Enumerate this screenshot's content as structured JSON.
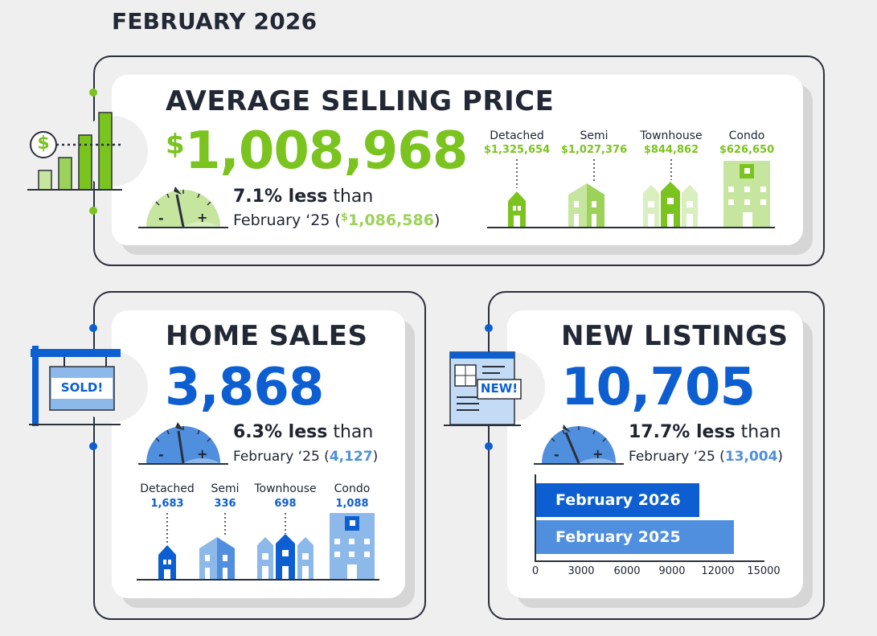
{
  "page": {
    "title": "FEBRUARY 2026"
  },
  "colors": {
    "green": "#7bc41f",
    "green_light": "#c6e69f",
    "blue": "#0d5fd1",
    "blue_light": "#8cb9ea",
    "dark": "#222836"
  },
  "avg_price": {
    "heading": "AVERAGE SELLING PRICE",
    "currency": "$",
    "value": "1,008,968",
    "change_bold": "7.1% less",
    "change_rest": " than",
    "compare_prefix": "February ‘25 (",
    "compare_currency": "$",
    "compare_value": "1,086,586",
    "compare_suffix": ")",
    "gauge": {
      "minus": "-",
      "plus": "+"
    },
    "icon_symbol": "$",
    "types": [
      {
        "label": "Detached",
        "value": "$1,325,654"
      },
      {
        "label": "Semi",
        "value": "$1,027,376"
      },
      {
        "label": "Townhouse",
        "value": "$844,862"
      },
      {
        "label": "Condo",
        "value": "$626,650"
      }
    ]
  },
  "home_sales": {
    "heading": "HOME SALES",
    "value": "3,868",
    "change_bold": "6.3% less",
    "change_rest": " than",
    "compare_prefix": "February ‘25 (",
    "compare_value": "4,127",
    "compare_suffix": ")",
    "gauge": {
      "minus": "-",
      "plus": "+"
    },
    "sign_text": "SOLD!",
    "types": [
      {
        "label": "Detached",
        "value": "1,683"
      },
      {
        "label": "Semi",
        "value": "336"
      },
      {
        "label": "Townhouse",
        "value": "698"
      },
      {
        "label": "Condo",
        "value": "1,088"
      }
    ]
  },
  "new_listings": {
    "heading": "NEW LISTINGS",
    "value": "10,705",
    "change_bold": "17.7% less",
    "change_rest": " than",
    "compare_prefix": "February ‘25 (",
    "compare_value": "13,004",
    "compare_suffix": ")",
    "gauge": {
      "minus": "-",
      "plus": "+"
    },
    "doc_text": "NEW!"
  },
  "chart_data": {
    "type": "bar",
    "orientation": "horizontal",
    "categories": [
      "February 2026",
      "February 2025"
    ],
    "values": [
      10705,
      13004
    ],
    "xlim": [
      0,
      15000
    ],
    "xticks": [
      "0",
      "3000",
      "6000",
      "9000",
      "12000",
      "15000"
    ],
    "title": "",
    "xlabel": "",
    "ylabel": ""
  }
}
